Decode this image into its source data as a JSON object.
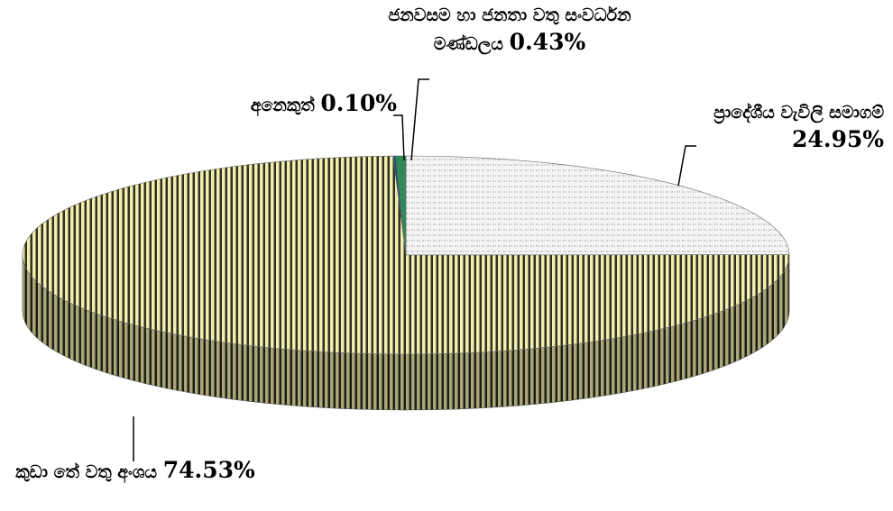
{
  "chart_data": {
    "type": "pie3d",
    "categories": [
      "ප්‍රාදේශීය වැවිලි සමාගම්",
      "කුඩා තේ වතු අංශය",
      "අනෙකුත්",
      "ජනවසම හා ජනතා වතු සංවර්ධන මණ්ඩලය"
    ],
    "values": [
      24.95,
      74.53,
      0.1,
      0.43
    ],
    "value_labels": [
      "24.95%",
      "74.53%",
      "0.10%",
      "0.43%"
    ],
    "colors": [
      "#e4e4e4",
      "#efeaa8",
      "#1f4e79",
      "#2e8b57"
    ]
  }
}
